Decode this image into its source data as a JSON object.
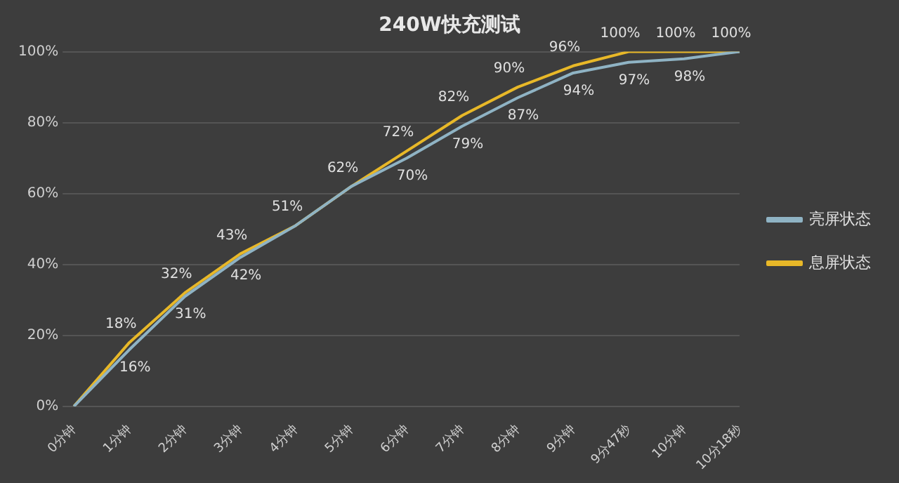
{
  "chart_data": {
    "type": "line",
    "title": "240W快充测试",
    "categories": [
      "0分钟",
      "1分钟",
      "2分钟",
      "3分钟",
      "4分钟",
      "5分钟",
      "6分钟",
      "7分钟",
      "8分钟",
      "9分钟",
      "9分47秒",
      "10分钟",
      "10分18秒"
    ],
    "series": [
      {
        "name": "亮屏状态",
        "color": "#8fb3c4",
        "values": [
          0,
          16,
          31,
          42,
          51,
          62,
          70,
          79,
          87,
          94,
          97,
          98,
          100
        ],
        "value_labels": [
          null,
          "16%",
          "31%",
          "42%",
          null,
          null,
          "70%",
          "79%",
          "87%",
          "94%",
          "97%",
          "98%",
          null
        ]
      },
      {
        "name": "息屏状态",
        "color": "#e8b828",
        "values": [
          0,
          18,
          32,
          43,
          51,
          62,
          72,
          82,
          90,
          96,
          100,
          100,
          100
        ],
        "value_labels": [
          null,
          "18%",
          "32%",
          "43%",
          "51%",
          "62%",
          "72%",
          "82%",
          "90%",
          "96%",
          "100%",
          "100%",
          "100%"
        ]
      }
    ],
    "ylim": [
      0,
      100
    ],
    "yticks": [
      {
        "value": 0,
        "label": "0%"
      },
      {
        "value": 20,
        "label": "20%"
      },
      {
        "value": 40,
        "label": "40%"
      },
      {
        "value": 60,
        "label": "60%"
      },
      {
        "value": 80,
        "label": "80%"
      },
      {
        "value": 100,
        "label": "100%"
      }
    ],
    "grid": "y",
    "legend": "right",
    "marker": "none",
    "line_style": "solid"
  }
}
